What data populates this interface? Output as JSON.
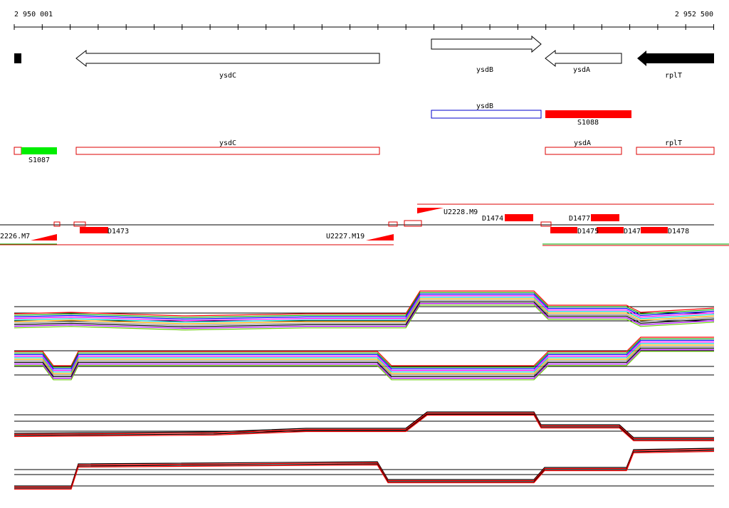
{
  "ruler": {
    "start": "2 950 001",
    "end": "2 952 500"
  },
  "genes": [
    {
      "label": "ysdC"
    },
    {
      "label": "ysdB"
    },
    {
      "label": "ysdA"
    },
    {
      "label": "rplT"
    }
  ],
  "regions": [
    {
      "label": "ysdB"
    },
    {
      "label": "S1088"
    }
  ],
  "annotations": [
    {
      "label": "S1087"
    },
    {
      "label": "ysdC"
    },
    {
      "label": "ysdA"
    },
    {
      "label": "rplT"
    }
  ],
  "features": [
    {
      "label": "U2228.M9"
    },
    {
      "label": "D1474"
    },
    {
      "label": "D1477"
    },
    {
      "label": "2226.M7"
    },
    {
      "label": "D1473"
    },
    {
      "label": "U2227.M19"
    },
    {
      "label": "D1475"
    },
    {
      "label": "D147"
    },
    {
      "label": "D1478"
    }
  ]
}
